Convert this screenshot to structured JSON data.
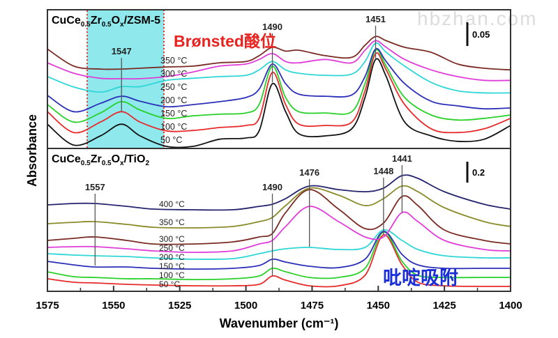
{
  "watermark": "hbzhan.com",
  "annotations": {
    "bronsted": "Brønsted酸位",
    "pyridine": "吡啶吸附",
    "bronsted_color": "#e8231f",
    "pyridine_color": "#1a2fd6"
  },
  "chart_data": [
    {
      "type": "line",
      "title_parts": [
        [
          "CuCe",
          ""
        ],
        [
          "0.5",
          "sub"
        ],
        [
          "Zr",
          ""
        ],
        [
          "0.5",
          "sub"
        ],
        [
          "O",
          ""
        ],
        [
          "x",
          "sub"
        ],
        [
          "/ZSM-5",
          ""
        ]
      ],
      "ylabel": "Absorbance",
      "scale_bar": "0.05",
      "ylim": [
        0,
        0.332
      ],
      "highlight_range": [
        1560,
        1531
      ],
      "highlight_color": "#8ee8ec",
      "x": [
        1575,
        1565,
        1555,
        1547,
        1540,
        1530,
        1520,
        1510,
        1500,
        1495,
        1490,
        1485,
        1480,
        1470,
        1460,
        1455,
        1451,
        1447,
        1440,
        1430,
        1420,
        1410,
        1400
      ],
      "series": [
        {
          "label": "50 °C",
          "color": "#111111",
          "values": [
            0.058,
            0.008,
            0.03,
            0.058,
            0.03,
            0.005,
            0.005,
            0.022,
            0.025,
            0.042,
            0.155,
            0.088,
            0.035,
            0.03,
            0.047,
            0.122,
            0.213,
            0.172,
            0.063,
            0.03,
            0.017,
            0.022,
            0.055
          ]
        },
        {
          "label": "100 °C",
          "color": "#e8292a",
          "values": [
            0.088,
            0.038,
            0.063,
            0.088,
            0.063,
            0.042,
            0.043,
            0.05,
            0.055,
            0.072,
            0.182,
            0.105,
            0.058,
            0.055,
            0.063,
            0.138,
            0.227,
            0.188,
            0.105,
            0.047,
            0.038,
            0.047,
            0.072
          ]
        },
        {
          "label": "150 °C",
          "color": "#27d127",
          "values": [
            0.105,
            0.063,
            0.085,
            0.112,
            0.092,
            0.072,
            0.078,
            0.082,
            0.085,
            0.105,
            0.197,
            0.122,
            0.088,
            0.085,
            0.088,
            0.155,
            0.235,
            0.197,
            0.122,
            0.08,
            0.068,
            0.072,
            0.08
          ]
        },
        {
          "label": "200 °C",
          "color": "#2b2fb8",
          "values": [
            0.127,
            0.088,
            0.108,
            0.125,
            0.113,
            0.1,
            0.105,
            0.112,
            0.122,
            0.142,
            0.202,
            0.155,
            0.13,
            0.125,
            0.128,
            0.172,
            0.238,
            0.208,
            0.155,
            0.113,
            0.102,
            0.095,
            0.097
          ]
        },
        {
          "label": "250 °C",
          "color": "#2fd6d6",
          "values": [
            0.172,
            0.147,
            0.135,
            0.148,
            0.148,
            0.163,
            0.168,
            0.172,
            0.175,
            0.188,
            0.208,
            0.188,
            0.18,
            0.175,
            0.178,
            0.208,
            0.252,
            0.23,
            0.197,
            0.158,
            0.138,
            0.133,
            0.133
          ]
        },
        {
          "label": "300 °C",
          "color": "#e03cd8",
          "values": [
            0.205,
            0.18,
            0.168,
            0.167,
            0.167,
            0.172,
            0.183,
            0.197,
            0.202,
            0.213,
            0.227,
            0.208,
            0.205,
            0.213,
            0.205,
            0.235,
            0.258,
            0.242,
            0.213,
            0.188,
            0.172,
            0.163,
            0.163
          ]
        },
        {
          "label": "350 °C",
          "color": "#7a2a22",
          "values": [
            0.238,
            0.197,
            0.19,
            0.19,
            0.192,
            0.195,
            0.197,
            0.205,
            0.208,
            0.222,
            0.242,
            0.233,
            0.235,
            0.222,
            0.218,
            0.247,
            0.268,
            0.258,
            0.242,
            0.23,
            0.202,
            0.192,
            0.188
          ]
        }
      ],
      "peak_labels": [
        "1547",
        "1490",
        "1451"
      ]
    },
    {
      "type": "line",
      "title_parts": [
        [
          "CuCe",
          ""
        ],
        [
          "0.5",
          "sub"
        ],
        [
          "Zr",
          ""
        ],
        [
          "0.5",
          "sub"
        ],
        [
          "O",
          ""
        ],
        [
          "x",
          "sub"
        ],
        [
          "/TiO",
          ""
        ],
        [
          "2",
          "sub"
        ]
      ],
      "xlabel": "Wavenumber (cm⁻¹)",
      "ylabel": "Absorbance",
      "scale_bar": "0.2",
      "ylim": [
        0,
        1.367
      ],
      "xlim": [
        1575,
        1400
      ],
      "xticks": [
        "1575",
        "1550",
        "1525",
        "1500",
        "1475",
        "1450",
        "1425",
        "1400"
      ],
      "x": [
        1575,
        1565,
        1557,
        1545,
        1535,
        1520,
        1505,
        1495,
        1490,
        1485,
        1476,
        1465,
        1455,
        1448,
        1441,
        1435,
        1425,
        1410,
        1400
      ],
      "series": [
        {
          "label": "50 °C",
          "color": "#e8292a",
          "values": [
            0.12,
            0.087,
            0.08,
            0.067,
            0.06,
            0.053,
            0.053,
            0.067,
            0.147,
            0.107,
            0.053,
            0.053,
            0.153,
            0.54,
            0.253,
            0.087,
            0.053,
            0.047,
            0.047
          ]
        },
        {
          "label": "100 °C",
          "color": "#27d127",
          "values": [
            0.187,
            0.14,
            0.133,
            0.12,
            0.12,
            0.113,
            0.12,
            0.147,
            0.22,
            0.187,
            0.133,
            0.133,
            0.22,
            0.567,
            0.287,
            0.153,
            0.133,
            0.133,
            0.133
          ]
        },
        {
          "label": "150 °C",
          "color": "#2b2fb8",
          "values": [
            0.287,
            0.253,
            0.233,
            0.233,
            0.22,
            0.213,
            0.22,
            0.247,
            0.307,
            0.28,
            0.24,
            0.227,
            0.307,
            0.573,
            0.353,
            0.253,
            0.22,
            0.22,
            0.22
          ]
        },
        {
          "label": "200 °C",
          "color": "#2fd6d6",
          "values": [
            0.36,
            0.347,
            0.34,
            0.333,
            0.32,
            0.307,
            0.313,
            0.36,
            0.387,
            0.407,
            0.42,
            0.4,
            0.42,
            0.587,
            0.487,
            0.4,
            0.34,
            0.32,
            0.32
          ]
        },
        {
          "label": "250 °C",
          "color": "#e03cd8",
          "values": [
            0.42,
            0.427,
            0.427,
            0.407,
            0.387,
            0.373,
            0.387,
            0.453,
            0.487,
            0.62,
            0.813,
            0.667,
            0.52,
            0.52,
            0.753,
            0.667,
            0.487,
            0.4,
            0.387
          ]
        },
        {
          "label": "300 °C",
          "color": "#7a2a22",
          "values": [
            0.487,
            0.507,
            0.52,
            0.487,
            0.453,
            0.453,
            0.473,
            0.52,
            0.553,
            0.753,
            0.973,
            0.787,
            0.6,
            0.653,
            0.907,
            0.82,
            0.587,
            0.487,
            0.453
          ]
        },
        {
          "label": "350 °C",
          "color": "#8a8a2a",
          "values": [
            0.647,
            0.66,
            0.667,
            0.64,
            0.613,
            0.607,
            0.62,
            0.667,
            0.707,
            0.82,
            0.987,
            0.92,
            0.82,
            0.887,
            1.007,
            0.953,
            0.8,
            0.667,
            0.62
          ]
        },
        {
          "label": "400 °C",
          "color": "#23236e",
          "values": [
            0.827,
            0.84,
            0.84,
            0.813,
            0.787,
            0.78,
            0.78,
            0.813,
            0.833,
            0.887,
            1.007,
            0.973,
            0.953,
            0.987,
            1.107,
            1.08,
            0.953,
            0.833,
            0.787
          ]
        }
      ],
      "peak_labels": [
        "1557",
        "1490",
        "1476",
        "1448",
        "1441"
      ]
    }
  ]
}
